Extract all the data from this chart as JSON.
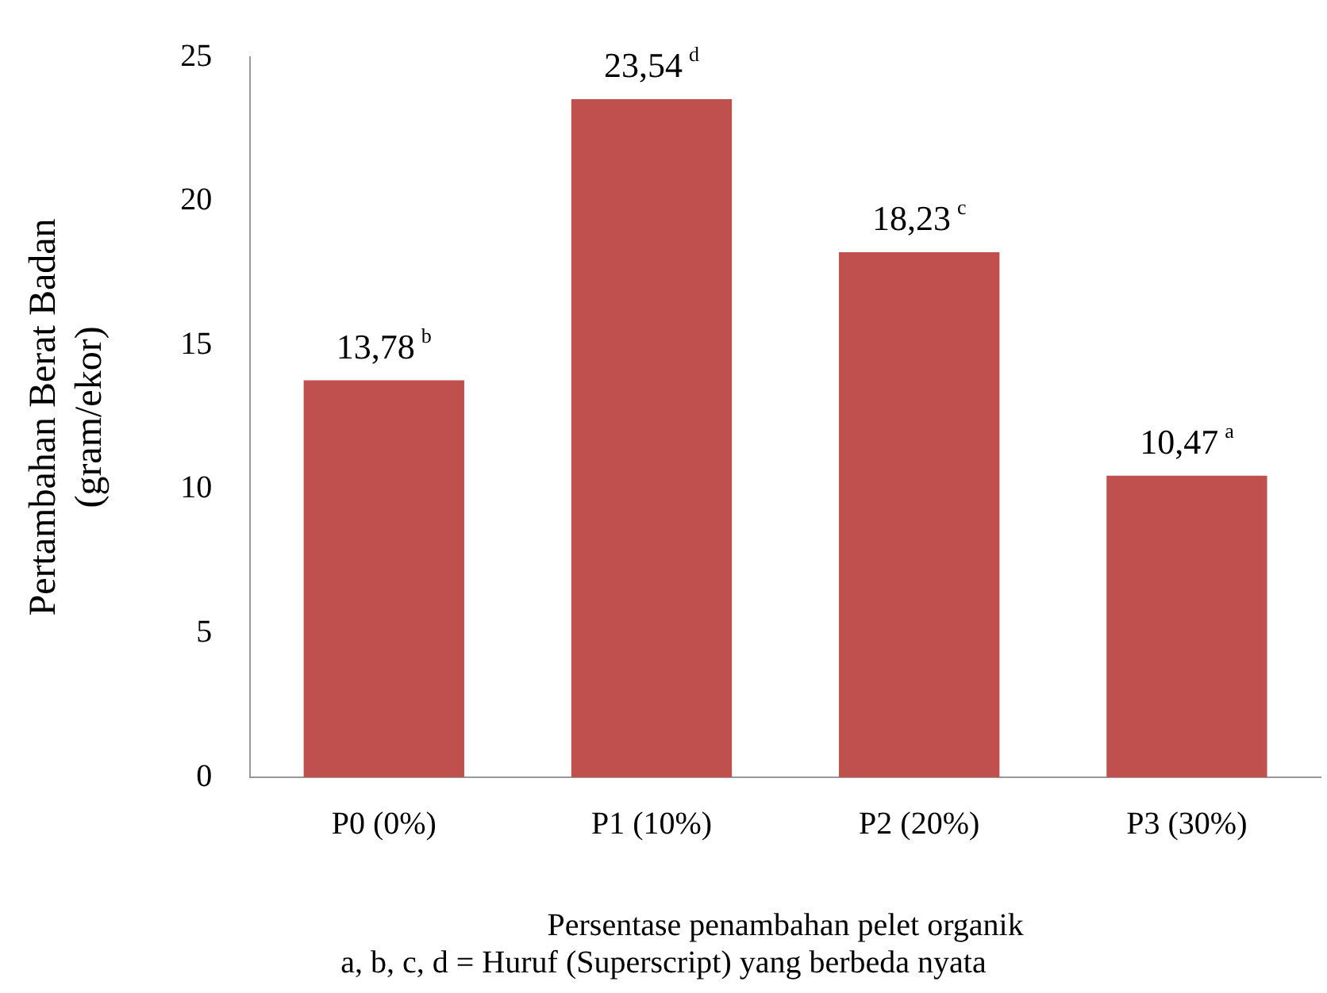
{
  "chart_data": {
    "type": "bar",
    "xlabel": "Persentase penambahan pelet organik",
    "ylabel": "Pertambahan Berat Badan\n(gram/ekor)",
    "annotations": [
      "a, b, c, d = Huruf (Superscript) yang berbeda nyata"
    ],
    "categories": [
      "P0 (0%)",
      "P1 (10%)",
      "P2 (20%)",
      "P3 (30%)"
    ],
    "values": [
      13.78,
      23.54,
      18.23,
      10.47
    ],
    "value_labels": [
      "13,78$^{b}$",
      "23,54$^{d}$",
      "18,23$^{c}$",
      "10,47$^{a}$"
    ],
    "color": "#c0504d",
    "ylim": [
      0,
      25
    ],
    "yticks": [
      0,
      5,
      10,
      15,
      20,
      25
    ],
    "grid": false,
    "legend": false
  }
}
